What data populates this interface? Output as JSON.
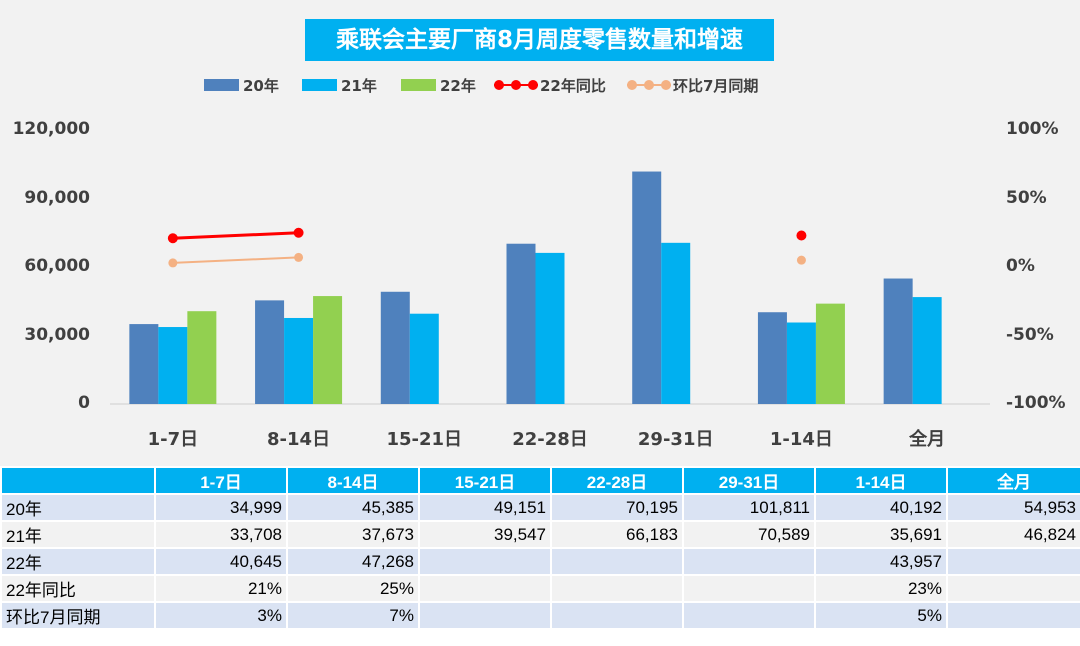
{
  "title": "乘联会主要厂商8月周度零售数量和增速",
  "colors": {
    "s20": "#4f81bd",
    "s21": "#00b0f0",
    "s22": "#92d050",
    "yoy": "#ff0000",
    "mom": "#f4b183",
    "title_bg": "#00b0f0",
    "table_header": "#00b0f0"
  },
  "chart_data": {
    "type": "bar",
    "categories": [
      "1-7日",
      "8-14日",
      "15-21日",
      "22-28日",
      "29-31日",
      "1-14日",
      "全月"
    ],
    "series": [
      {
        "name": "20年",
        "type": "bar",
        "axis": "left",
        "values": [
          34999,
          45385,
          49151,
          70195,
          101811,
          40192,
          54953
        ]
      },
      {
        "name": "21年",
        "type": "bar",
        "axis": "left",
        "values": [
          33708,
          37673,
          39547,
          66183,
          70589,
          35691,
          46824
        ]
      },
      {
        "name": "22年",
        "type": "bar",
        "axis": "left",
        "values": [
          40645,
          47268,
          null,
          null,
          null,
          43957,
          null
        ]
      },
      {
        "name": "22年同比",
        "type": "line",
        "axis": "right",
        "values": [
          21,
          25,
          null,
          null,
          null,
          23,
          null
        ]
      },
      {
        "name": "环比7月同期",
        "type": "line",
        "axis": "right",
        "values": [
          3,
          7,
          null,
          null,
          null,
          5,
          null
        ]
      }
    ],
    "ylim": [
      0,
      120000
    ],
    "yticks": [
      "0",
      "30,000",
      "60,000",
      "90,000",
      "120,000"
    ],
    "y2lim": [
      -100,
      100
    ],
    "y2ticks": [
      "-100%",
      "-50%",
      "0%",
      "50%",
      "100%"
    ],
    "grid": false,
    "legend_position": "top"
  },
  "table": {
    "corner": "",
    "headers": [
      "1-7日",
      "8-14日",
      "15-21日",
      "22-28日",
      "29-31日",
      "1-14日",
      "全月"
    ],
    "rows": [
      {
        "label": "20年",
        "cells": [
          "34,999",
          "45,385",
          "49,151",
          "70,195",
          "101,811",
          "40,192",
          "54,953"
        ]
      },
      {
        "label": "21年",
        "cells": [
          "33,708",
          "37,673",
          "39,547",
          "66,183",
          "70,589",
          "35,691",
          "46,824"
        ]
      },
      {
        "label": "22年",
        "cells": [
          "40,645",
          "47,268",
          "",
          "",
          "",
          "43,957",
          ""
        ]
      },
      {
        "label": "22年同比",
        "cells": [
          "21%",
          "25%",
          "",
          "",
          "",
          "23%",
          ""
        ]
      },
      {
        "label": "环比7月同期",
        "cells": [
          "3%",
          "7%",
          "",
          "",
          "",
          "5%",
          ""
        ]
      }
    ]
  }
}
